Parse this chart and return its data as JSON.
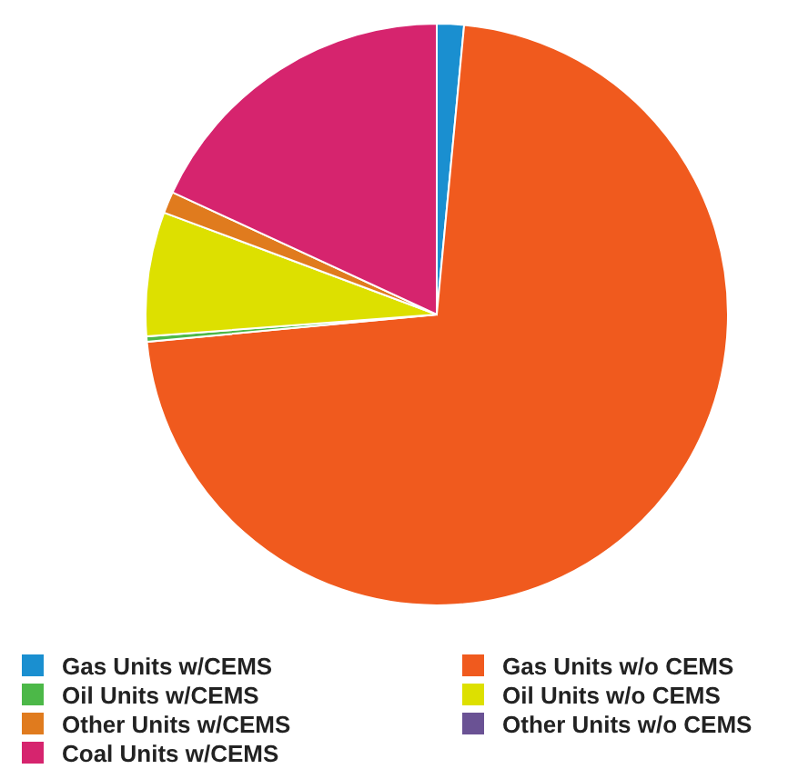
{
  "chart_data": {
    "type": "pie",
    "categories": [
      "Gas Units w/CEMS",
      "Gas Units w/o CEMS",
      "Oil Units w/CEMS",
      "Oil Units w/o CEMS",
      "Other Units w/CEMS",
      "Other Units w/o CEMS",
      "Coal Units w/CEMS"
    ],
    "values": [
      1.5,
      72,
      0.3,
      6.9,
      1.2,
      null,
      18.1
    ],
    "colors": [
      "#1a8fd0",
      "#f05a1e",
      "#4cb848",
      "#dde000",
      "#e07b1e",
      "#6a5294",
      "#d6246e"
    ],
    "legend": "bottom"
  }
}
